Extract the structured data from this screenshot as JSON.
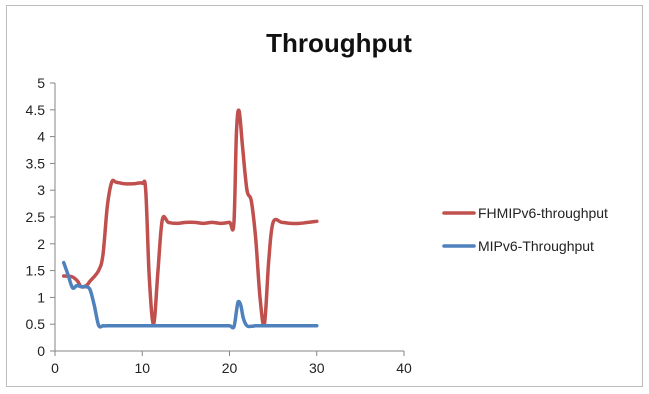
{
  "chart_data": {
    "type": "line",
    "title": "Throughput",
    "xlabel": "",
    "ylabel": "",
    "xlim": [
      0,
      40
    ],
    "ylim": [
      0,
      5
    ],
    "xticks": [
      0,
      10,
      20,
      30,
      40
    ],
    "yticks": [
      0,
      0.5,
      1,
      1.5,
      2,
      2.5,
      3,
      3.5,
      4,
      4.5,
      5
    ],
    "grid": false,
    "legend_position": "right",
    "series": [
      {
        "name": "FHMIPv6-throughput",
        "color": "#c0504d",
        "x": [
          1,
          2,
          2.6,
          3,
          3.6,
          4,
          5,
          5.5,
          6,
          6.5,
          7,
          8,
          9,
          10,
          10.4,
          10.8,
          11.3,
          11.8,
          12.3,
          13,
          14,
          15,
          16,
          17,
          18,
          19,
          20,
          20.5,
          20.8,
          21.1,
          21.5,
          22,
          22.5,
          23,
          23.5,
          24,
          24.5,
          25,
          26,
          27,
          28,
          29,
          30
        ],
        "values": [
          1.4,
          1.38,
          1.3,
          1.2,
          1.22,
          1.3,
          1.5,
          1.8,
          2.7,
          3.15,
          3.15,
          3.12,
          3.12,
          3.13,
          3.0,
          1.4,
          0.5,
          1.5,
          2.45,
          2.4,
          2.38,
          2.4,
          2.4,
          2.38,
          2.4,
          2.38,
          2.4,
          2.38,
          4.1,
          4.48,
          3.8,
          3.0,
          2.8,
          2.1,
          1.0,
          0.5,
          1.7,
          2.4,
          2.4,
          2.38,
          2.38,
          2.4,
          2.42
        ]
      },
      {
        "name": "MIPv6-Throughput",
        "color": "#4f81bd",
        "x": [
          1,
          1.5,
          2,
          2.5,
          3,
          3.5,
          4,
          4.5,
          5,
          5.5,
          6,
          7,
          8,
          9,
          10,
          11,
          12,
          13,
          14,
          15,
          16,
          17,
          18,
          19,
          20,
          20.5,
          20.8,
          21,
          21.3,
          21.6,
          22,
          22.5,
          23,
          24,
          25,
          26,
          27,
          28,
          29,
          30
        ],
        "values": [
          1.65,
          1.42,
          1.18,
          1.22,
          1.2,
          1.2,
          1.15,
          0.85,
          0.48,
          0.47,
          0.47,
          0.47,
          0.47,
          0.47,
          0.47,
          0.47,
          0.47,
          0.47,
          0.47,
          0.47,
          0.47,
          0.47,
          0.47,
          0.47,
          0.47,
          0.45,
          0.75,
          0.92,
          0.85,
          0.6,
          0.47,
          0.46,
          0.47,
          0.47,
          0.47,
          0.47,
          0.47,
          0.47,
          0.47,
          0.47
        ]
      }
    ]
  }
}
